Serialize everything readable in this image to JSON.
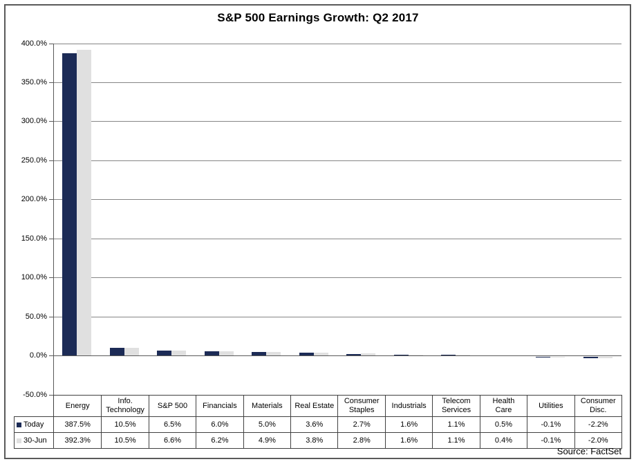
{
  "title": "S&P 500 Earnings Growth: Q2 2017",
  "source_note": "Source: FactSet",
  "colors": {
    "bar_today": "#1C2B56",
    "bar_30jun": "#E0E0E0",
    "gridline": "#858585",
    "axis": "#595959",
    "table_border": "#404040",
    "outer_border": "#595959"
  },
  "chart_data": {
    "type": "bar",
    "title": "S&P 500 Earnings Growth: Q2 2017",
    "categories": [
      "Energy",
      "Info. Technology",
      "S&P 500",
      "Financials",
      "Materials",
      "Real Estate",
      "Consumer Staples",
      "Industrials",
      "Telecom Services",
      "Health Care",
      "Utilities",
      "Consumer Disc."
    ],
    "series": [
      {
        "name": "Today",
        "color": "#1C2B56",
        "values": [
          387.5,
          10.5,
          6.5,
          6.0,
          5.0,
          3.6,
          2.7,
          1.6,
          1.1,
          0.5,
          -0.1,
          -2.2
        ]
      },
      {
        "name": "30-Jun",
        "color": "#E0E0E0",
        "values": [
          392.3,
          10.5,
          6.6,
          6.2,
          4.9,
          3.8,
          2.8,
          1.6,
          1.1,
          0.4,
          -0.1,
          -2.0
        ]
      }
    ],
    "ylim": [
      -50,
      400
    ],
    "ytick_step": 50,
    "ytick_labels": [
      "400.0%",
      "350.0%",
      "300.0%",
      "250.0%",
      "200.0%",
      "150.0%",
      "100.0%",
      "50.0%",
      "0.0%",
      "-50.0%"
    ],
    "grid": true,
    "legend_position": "data-table-left",
    "value_format": "percent_1dp",
    "data_table_shown": true
  },
  "data_table": {
    "column_headers": [
      "Energy",
      "Info.\nTechnology",
      "S&P 500",
      "Financials",
      "Materials",
      "Real Estate",
      "Consumer\nStaples",
      "Industrials",
      "Telecom\nServices",
      "Health\nCare",
      "Utilities",
      "Consumer\nDisc."
    ],
    "rows": [
      {
        "label": "Today",
        "marker_color": "#1C2B56",
        "values": [
          "387.5%",
          "10.5%",
          "6.5%",
          "6.0%",
          "5.0%",
          "3.6%",
          "2.7%",
          "1.6%",
          "1.1%",
          "0.5%",
          "-0.1%",
          "-2.2%"
        ]
      },
      {
        "label": "30-Jun",
        "marker_color": "#E0E0E0",
        "values": [
          "392.3%",
          "10.5%",
          "6.6%",
          "6.2%",
          "4.9%",
          "3.8%",
          "2.8%",
          "1.6%",
          "1.1%",
          "0.4%",
          "-0.1%",
          "-2.0%"
        ]
      }
    ]
  }
}
